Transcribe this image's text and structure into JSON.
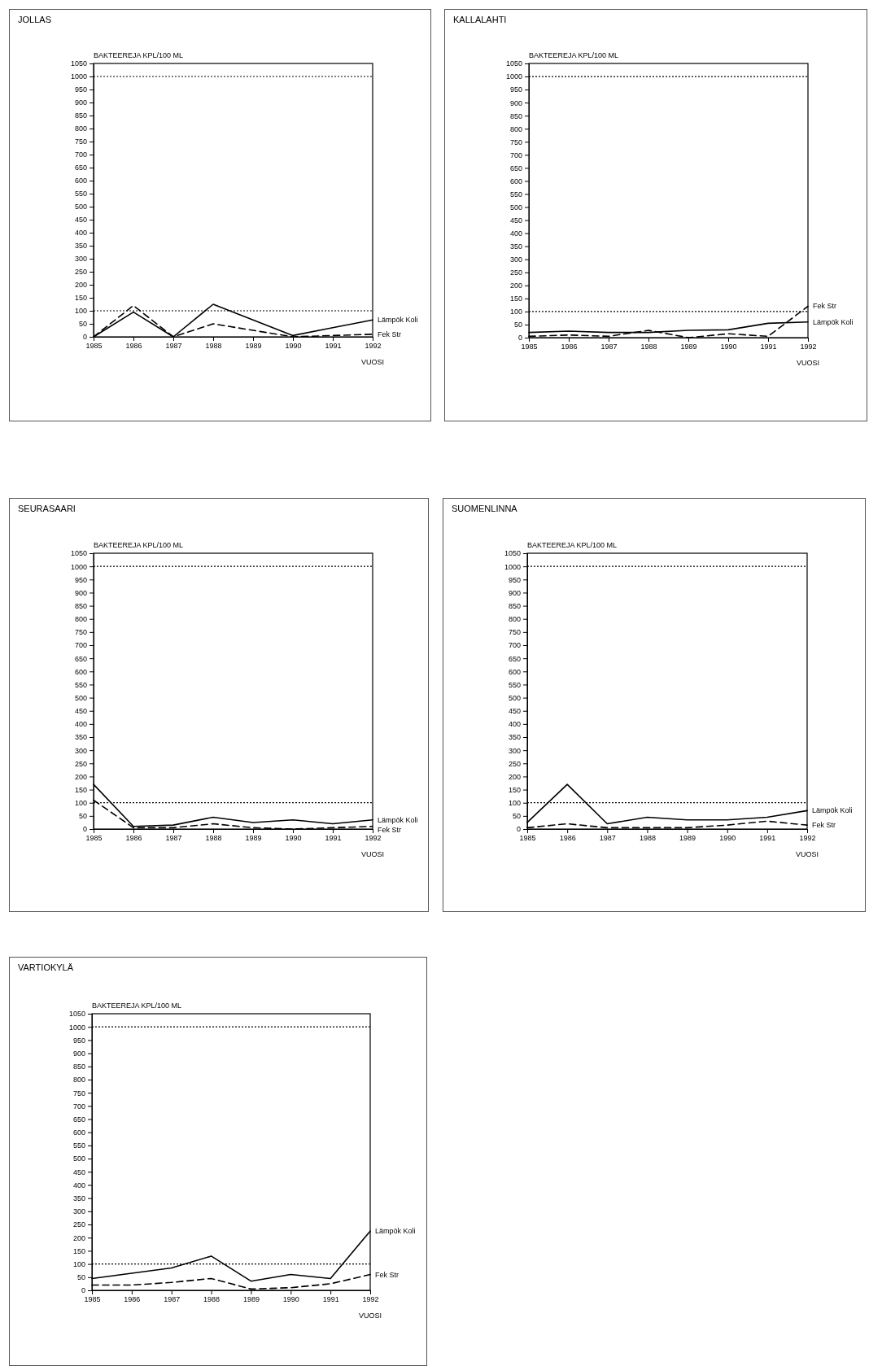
{
  "chart_data": [
    {
      "type": "line",
      "title": "JOLLAS",
      "ylabel": "BAKTEEREJA KPL/100 ML",
      "xlabel": "VUOSI",
      "x": [
        1985,
        1986,
        1987,
        1988,
        1989,
        1990,
        1991,
        1992
      ],
      "xlim": [
        1985,
        1992
      ],
      "xticks": [
        1985,
        1986,
        1987,
        1988,
        1989,
        1990,
        1991,
        1992
      ],
      "ylim": [
        0,
        1050
      ],
      "yticks": [
        0,
        50,
        100,
        150,
        200,
        250,
        300,
        350,
        400,
        450,
        500,
        550,
        600,
        650,
        700,
        750,
        800,
        850,
        900,
        950,
        1000,
        1050
      ],
      "grid": false,
      "legend": false,
      "marker": "none",
      "ref_lines": [
        {
          "axis": "y",
          "value": 100,
          "line_style": "dotted"
        },
        {
          "axis": "y",
          "value": 1000,
          "line_style": "dotted"
        }
      ],
      "series": [
        {
          "name": "Lämpök Koli",
          "color": "#000000",
          "line_style": "solid",
          "values": [
            0,
            95,
            0,
            125,
            65,
            5,
            35,
            65
          ]
        },
        {
          "name": "Fek Str",
          "color": "#000000",
          "line_style": "dashed",
          "values": [
            0,
            120,
            0,
            50,
            25,
            0,
            5,
            10
          ]
        }
      ]
    },
    {
      "type": "line",
      "title": "KALLALAHTI",
      "ylabel": "BAKTEEREJA KPL/100 ML",
      "xlabel": "VUOSI",
      "x": [
        1985,
        1986,
        1987,
        1988,
        1989,
        1990,
        1991,
        1992
      ],
      "xlim": [
        1985,
        1992
      ],
      "xticks": [
        1985,
        1986,
        1987,
        1988,
        1989,
        1990,
        1991,
        1992
      ],
      "ylim": [
        0,
        1050
      ],
      "yticks": [
        0,
        50,
        100,
        150,
        200,
        250,
        300,
        350,
        400,
        450,
        500,
        550,
        600,
        650,
        700,
        750,
        800,
        850,
        900,
        950,
        1000,
        1050
      ],
      "grid": false,
      "legend": false,
      "marker": "none",
      "ref_lines": [
        {
          "axis": "y",
          "value": 100,
          "line_style": "dotted"
        },
        {
          "axis": "y",
          "value": 1000,
          "line_style": "dotted"
        }
      ],
      "series": [
        {
          "name": "Lämpök Koli",
          "color": "#000000",
          "line_style": "solid",
          "values": [
            20,
            25,
            20,
            20,
            28,
            30,
            55,
            60
          ]
        },
        {
          "name": "Fek Str",
          "color": "#000000",
          "line_style": "dashed",
          "values": [
            5,
            10,
            5,
            28,
            0,
            15,
            5,
            120
          ]
        }
      ]
    },
    {
      "type": "line",
      "title": "SEURASAARI",
      "ylabel": "BAKTEEREJA KPL/100 ML",
      "xlabel": "VUOSI",
      "x": [
        1985,
        1986,
        1987,
        1988,
        1989,
        1990,
        1991,
        1992
      ],
      "xlim": [
        1985,
        1992
      ],
      "xticks": [
        1985,
        1986,
        1987,
        1988,
        1989,
        1990,
        1991,
        1992
      ],
      "ylim": [
        0,
        1050
      ],
      "yticks": [
        0,
        50,
        100,
        150,
        200,
        250,
        300,
        350,
        400,
        450,
        500,
        550,
        600,
        650,
        700,
        750,
        800,
        850,
        900,
        950,
        1000,
        1050
      ],
      "grid": false,
      "legend": false,
      "marker": "none",
      "ref_lines": [
        {
          "axis": "y",
          "value": 100,
          "line_style": "dotted"
        },
        {
          "axis": "y",
          "value": 1000,
          "line_style": "dotted"
        }
      ],
      "series": [
        {
          "name": "Lämpök Koli",
          "color": "#000000",
          "line_style": "solid",
          "values": [
            170,
            10,
            15,
            45,
            25,
            35,
            20,
            35
          ]
        },
        {
          "name": "Fek Str",
          "color": "#000000",
          "line_style": "dashed",
          "values": [
            110,
            5,
            5,
            20,
            5,
            0,
            5,
            10
          ]
        }
      ]
    },
    {
      "type": "line",
      "title": "SUOMENLINNA",
      "ylabel": "BAKTEEREJA KPL/100 ML",
      "xlabel": "VUOSI",
      "x": [
        1985,
        1986,
        1987,
        1988,
        1989,
        1990,
        1991,
        1992
      ],
      "xlim": [
        1985,
        1992
      ],
      "xticks": [
        1985,
        1986,
        1987,
        1988,
        1989,
        1990,
        1991,
        1992
      ],
      "ylim": [
        0,
        1050
      ],
      "yticks": [
        0,
        50,
        100,
        150,
        200,
        250,
        300,
        350,
        400,
        450,
        500,
        550,
        600,
        650,
        700,
        750,
        800,
        850,
        900,
        950,
        1000,
        1050
      ],
      "grid": false,
      "legend": false,
      "marker": "none",
      "ref_lines": [
        {
          "axis": "y",
          "value": 100,
          "line_style": "dotted"
        },
        {
          "axis": "y",
          "value": 1000,
          "line_style": "dotted"
        }
      ],
      "series": [
        {
          "name": "Lämpök Koli",
          "color": "#000000",
          "line_style": "solid",
          "values": [
            25,
            170,
            20,
            45,
            35,
            35,
            45,
            70
          ]
        },
        {
          "name": "Fek Str",
          "color": "#000000",
          "line_style": "dashed",
          "values": [
            5,
            20,
            5,
            5,
            5,
            15,
            30,
            15
          ]
        }
      ]
    },
    {
      "type": "line",
      "title": "VARTIOKYLÄ",
      "ylabel": "BAKTEEREJA KPL/100 ML",
      "xlabel": "VUOSI",
      "x": [
        1985,
        1986,
        1987,
        1988,
        1989,
        1990,
        1991,
        1992
      ],
      "xlim": [
        1985,
        1992
      ],
      "xticks": [
        1985,
        1986,
        1987,
        1988,
        1989,
        1990,
        1991,
        1992
      ],
      "ylim": [
        0,
        1050
      ],
      "yticks": [
        0,
        50,
        100,
        150,
        200,
        250,
        300,
        350,
        400,
        450,
        500,
        550,
        600,
        650,
        700,
        750,
        800,
        850,
        900,
        950,
        1000,
        1050
      ],
      "grid": false,
      "legend": false,
      "marker": "none",
      "ref_lines": [
        {
          "axis": "y",
          "value": 100,
          "line_style": "dotted"
        },
        {
          "axis": "y",
          "value": 1000,
          "line_style": "dotted"
        }
      ],
      "series": [
        {
          "name": "Lämpök Koli",
          "color": "#000000",
          "line_style": "solid",
          "values": [
            45,
            65,
            85,
            130,
            35,
            60,
            45,
            225
          ]
        },
        {
          "name": "Fek Str",
          "color": "#000000",
          "line_style": "dashed",
          "values": [
            20,
            20,
            30,
            45,
            5,
            10,
            25,
            60
          ]
        }
      ]
    }
  ]
}
